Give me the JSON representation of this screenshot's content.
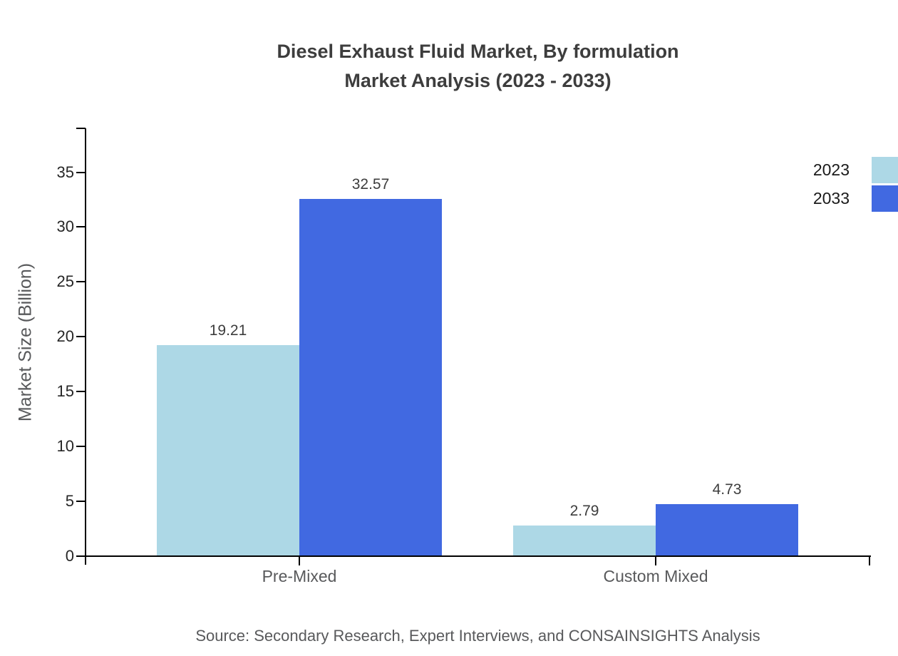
{
  "title": {
    "line1": "Diesel Exhaust Fluid Market, By formulation",
    "line2": "Market Analysis (2023 - 2033)"
  },
  "source": "Source: Secondary Research, Expert Interviews, and CONSAINSIGHTS Analysis",
  "colors": {
    "series_2023": "#ADD8E6",
    "series_2033": "#4169E1",
    "axis": "#000000",
    "title_text": "#3d3d3d",
    "muted_text": "#58595b"
  },
  "chart_data": {
    "type": "bar",
    "title": "Diesel Exhaust Fluid Market, By formulation Market Analysis (2023 - 2033)",
    "categories": [
      "Pre-Mixed",
      "Custom Mixed"
    ],
    "series": [
      {
        "name": "2023",
        "color": "#ADD8E6",
        "values": [
          19.21,
          2.79
        ]
      },
      {
        "name": "2033",
        "color": "#4169E1",
        "values": [
          32.57,
          4.73
        ]
      }
    ],
    "value_labels": [
      "19.21",
      "32.57",
      "2.79",
      "4.73"
    ],
    "xlabel": "",
    "ylabel": "Market Size (Billion)",
    "ylim": [
      0,
      39
    ],
    "yticks": [
      0,
      5,
      10,
      15,
      20,
      25,
      30,
      35
    ],
    "grid": false,
    "legend_position": "top-right"
  }
}
